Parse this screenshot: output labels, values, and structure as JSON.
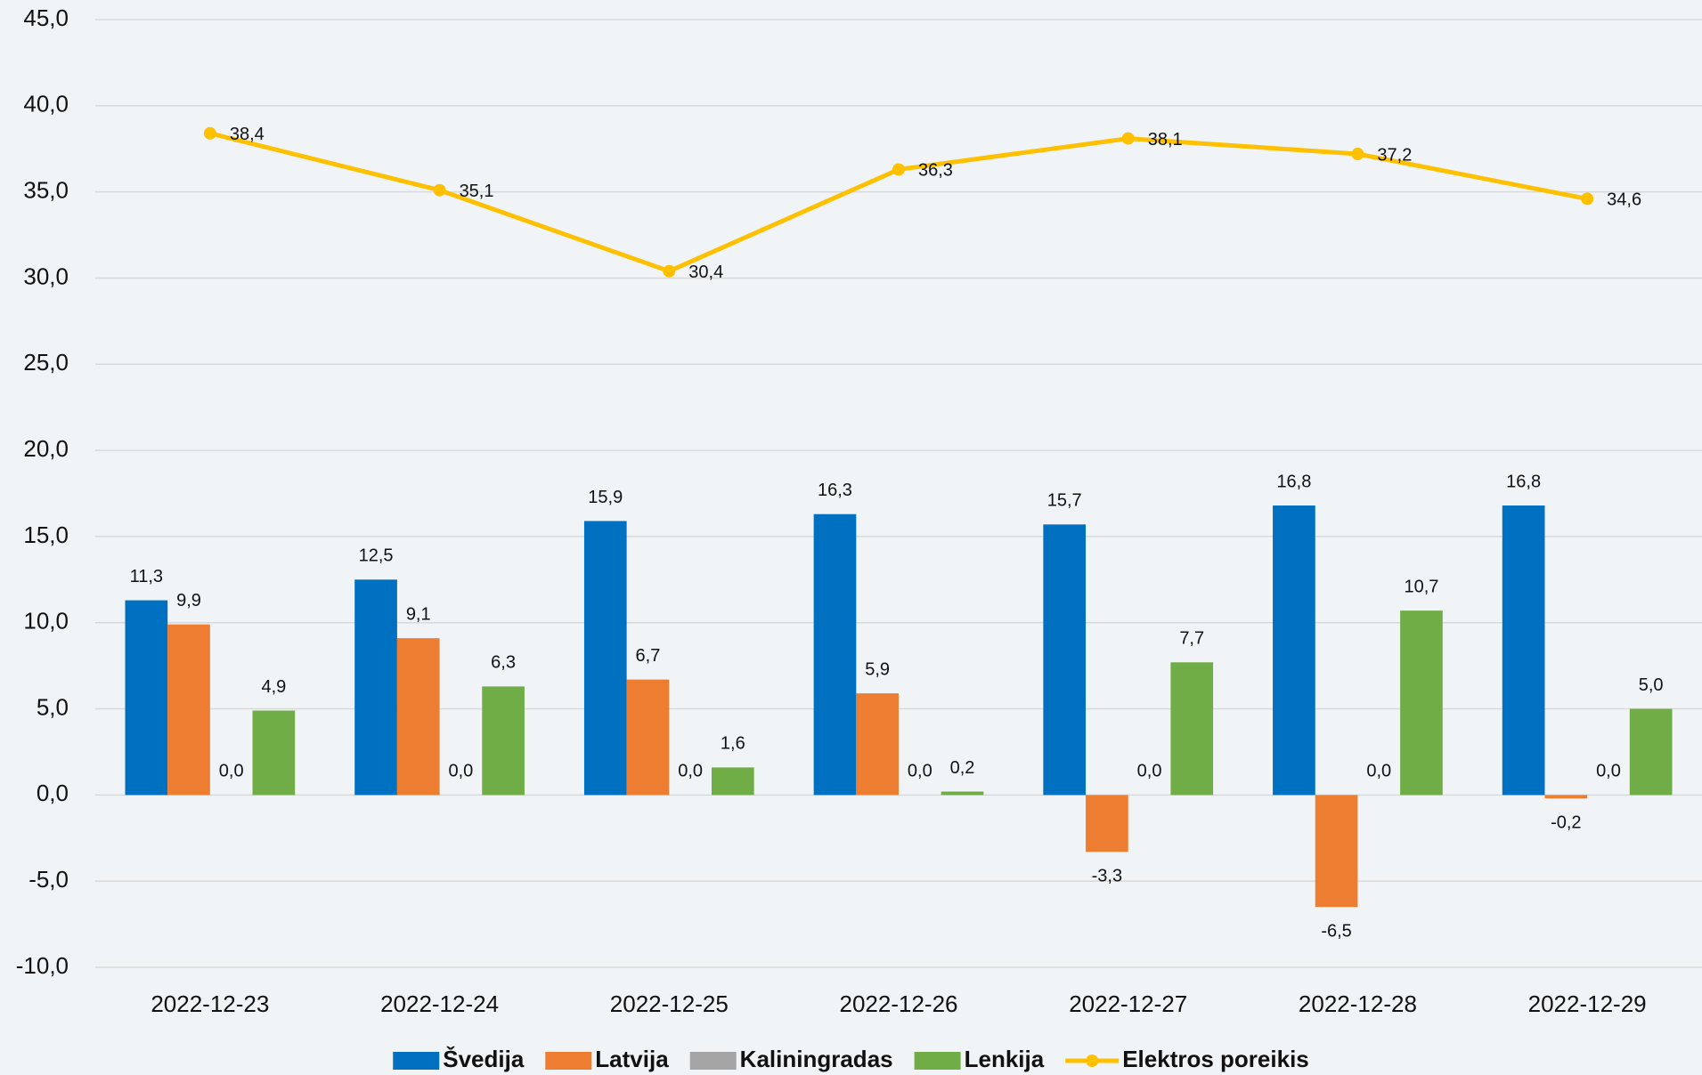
{
  "chart_data": {
    "type": "bar",
    "categories": [
      "2022-12-23",
      "2022-12-24",
      "2022-12-25",
      "2022-12-26",
      "2022-12-27",
      "2022-12-28",
      "2022-12-29"
    ],
    "series": [
      {
        "name": "Švedija",
        "color": "#0070c0",
        "values": [
          11.3,
          12.5,
          15.9,
          16.3,
          15.7,
          16.8,
          16.8
        ],
        "value_labels": [
          "11,3",
          "12,5",
          "15,9",
          "16,3",
          "15,7",
          "16,8",
          "16,8"
        ]
      },
      {
        "name": "Latvija",
        "color": "#ed7d31",
        "values": [
          9.9,
          9.1,
          6.7,
          5.9,
          -3.3,
          -6.5,
          -0.2
        ],
        "value_labels": [
          "9,9",
          "9,1",
          "6,7",
          "5,9",
          "-3,3",
          "-6,5",
          "-0,2"
        ]
      },
      {
        "name": "Kaliningradas",
        "color": "#a5a5a5",
        "values": [
          0,
          0,
          0,
          0,
          0,
          0,
          0
        ],
        "value_labels": [
          "0,0",
          "0,0",
          "0,0",
          "0,0",
          "0,0",
          "0,0",
          "0,0"
        ]
      },
      {
        "name": "Lenkija",
        "color": "#70ad47",
        "values": [
          4.9,
          6.3,
          1.6,
          0.2,
          7.7,
          10.7,
          5.0
        ],
        "value_labels": [
          "4,9",
          "6,3",
          "1,6",
          "0,2",
          "7,7",
          "10,7",
          "5,0"
        ]
      },
      {
        "name": "Elektros poreikis",
        "color": "#ffc000",
        "type": "line",
        "values": [
          38.4,
          35.1,
          30.4,
          36.3,
          38.1,
          37.2,
          34.6
        ],
        "value_labels": [
          "38,4",
          "35,1",
          "30,4",
          "36,3",
          "38,1",
          "37,2",
          "34,6"
        ]
      }
    ],
    "ylim": [
      -10,
      45
    ],
    "yticks": [
      {
        "value": -10,
        "label": "-10,0"
      },
      {
        "value": -5,
        "label": "-5,0"
      },
      {
        "value": 0,
        "label": "0,0"
      },
      {
        "value": 5,
        "label": "5,0"
      },
      {
        "value": 10,
        "label": "10,0"
      },
      {
        "value": 15,
        "label": "15,0"
      },
      {
        "value": 20,
        "label": "20,0"
      },
      {
        "value": 25,
        "label": "25,0"
      },
      {
        "value": 30,
        "label": "30,0"
      },
      {
        "value": 35,
        "label": "35,0"
      },
      {
        "value": 40,
        "label": "40,0"
      },
      {
        "value": 45,
        "label": "45,0"
      }
    ],
    "grid": true,
    "legend": "bottom"
  }
}
